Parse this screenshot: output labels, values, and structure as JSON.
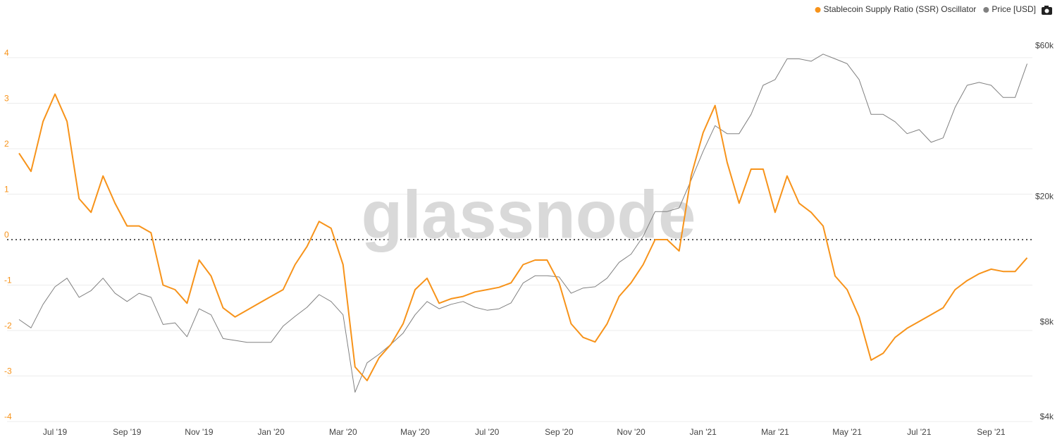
{
  "chart_data": {
    "type": "line",
    "watermark": "glassnode",
    "legend": "top-right",
    "grid": true,
    "categories": [
      null,
      null,
      null,
      "Jul '19",
      null,
      null,
      null,
      null,
      null,
      "Sep '19",
      null,
      null,
      null,
      null,
      null,
      "Nov '19",
      null,
      null,
      null,
      null,
      null,
      "Jan '20",
      null,
      null,
      null,
      null,
      null,
      "Mar '20",
      null,
      null,
      null,
      null,
      null,
      "May '20",
      null,
      null,
      null,
      null,
      null,
      "Jul '20",
      null,
      null,
      null,
      null,
      null,
      "Sep '20",
      null,
      null,
      null,
      null,
      null,
      "Nov '20",
      null,
      null,
      null,
      null,
      null,
      "Jan '21",
      null,
      null,
      null,
      null,
      null,
      "Mar '21",
      null,
      null,
      null,
      null,
      null,
      "May '21",
      null,
      null,
      null,
      null,
      null,
      "Jul '21",
      null,
      null,
      null,
      null,
      null,
      "Sep '21",
      null,
      null,
      null
    ],
    "ylim": [
      -4.03,
      4.96
    ],
    "yticks": [
      -4,
      -3,
      -2,
      -1,
      0,
      1,
      2,
      3,
      4
    ],
    "y2lim": [
      4000,
      79000
    ],
    "y2scale": "log",
    "y2ticks": [
      {
        "value": 4000,
        "label": "$4k"
      },
      {
        "value": 8000,
        "label": "$8k"
      },
      {
        "value": 20000,
        "label": "$20k"
      },
      {
        "value": 60000,
        "label": "$60k"
      }
    ],
    "series": [
      {
        "name": "Stablecoin Supply Ratio (SSR) Oscillator",
        "color": "#f7931a",
        "values": [
          1.9,
          1.5,
          2.6,
          3.2,
          2.6,
          0.9,
          0.6,
          1.4,
          0.8,
          0.3,
          0.3,
          0.15,
          -1.0,
          -1.1,
          -1.4,
          -0.45,
          -0.8,
          -1.5,
          -1.7,
          -1.55,
          -1.4,
          -1.25,
          -1.1,
          -0.55,
          -0.15,
          0.4,
          0.25,
          -0.55,
          -2.8,
          -3.1,
          -2.6,
          -2.3,
          -1.85,
          -1.1,
          -0.85,
          -1.4,
          -1.3,
          -1.25,
          -1.15,
          -1.1,
          -1.05,
          -0.95,
          -0.55,
          -0.45,
          -0.45,
          -0.95,
          -1.85,
          -2.15,
          -2.25,
          -1.85,
          -1.25,
          -0.95,
          -0.55,
          0.0,
          0.0,
          -0.25,
          1.4,
          2.35,
          2.95,
          1.7,
          0.8,
          1.55,
          1.55,
          0.6,
          1.4,
          0.8,
          0.6,
          0.3,
          -0.8,
          -1.1,
          -1.7,
          -2.65,
          -2.5,
          -2.15,
          -1.95,
          -1.8,
          -1.65,
          -1.5,
          -1.1,
          -0.9,
          -0.75,
          -0.65,
          -0.7,
          -0.7,
          -0.4
        ]
      },
      {
        "name": "Price [USD]",
        "color": "#808080",
        "axis": "y2",
        "values": [
          8500,
          8000,
          9500,
          10800,
          11500,
          10000,
          10500,
          11500,
          10300,
          9700,
          10300,
          10000,
          8200,
          8300,
          7500,
          9200,
          8800,
          7400,
          7300,
          7200,
          7200,
          7200,
          8100,
          8700,
          9300,
          10200,
          9700,
          8800,
          5000,
          6200,
          6600,
          7100,
          7700,
          8800,
          9700,
          9200,
          9500,
          9700,
          9300,
          9100,
          9200,
          9600,
          11100,
          11700,
          11700,
          11600,
          10300,
          10700,
          10800,
          11500,
          12900,
          13700,
          15600,
          18700,
          18700,
          19200,
          23500,
          29000,
          35000,
          33000,
          33000,
          38000,
          47000,
          49000,
          57000,
          57000,
          56000,
          59000,
          57000,
          55000,
          49000,
          38000,
          38000,
          36000,
          33000,
          34000,
          31000,
          32000,
          40000,
          47000,
          48000,
          47000,
          43000,
          43000,
          55000
        ]
      }
    ]
  }
}
